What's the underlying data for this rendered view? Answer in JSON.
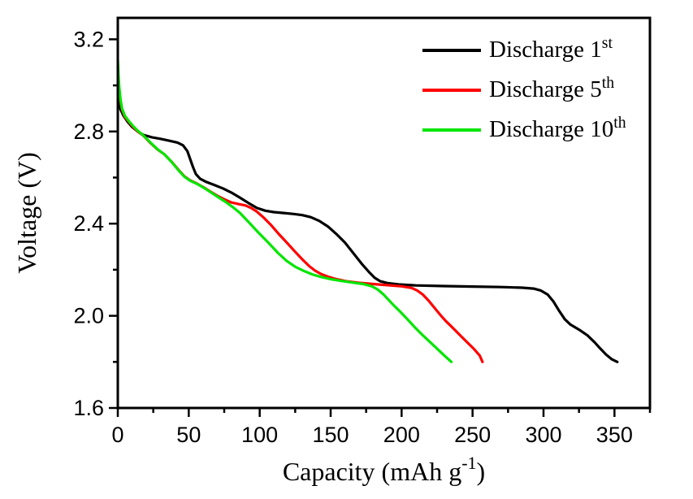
{
  "figure": {
    "background": "#ffffff",
    "frame_color": "#000000"
  },
  "chart_data": {
    "type": "line",
    "title": "",
    "xlabel_parts": {
      "base": "Capacity (mAh g",
      "sup": "-1",
      "end": ")"
    },
    "ylabel": "Voltage (V)",
    "grid": false,
    "legend_position": "top-right",
    "x_axis": {
      "min": 0,
      "max": 375,
      "major_ticks": [
        0,
        50,
        100,
        150,
        200,
        250,
        300,
        350
      ],
      "minor_ticks": [
        25,
        75,
        125,
        175,
        225,
        275,
        325,
        375
      ]
    },
    "y_axis": {
      "min": 1.6,
      "max": 3.293,
      "major_ticks": [
        1.6,
        2.0,
        2.4,
        2.8,
        3.2
      ],
      "minor_ticks": [
        1.8,
        2.2,
        2.6,
        3.0
      ]
    },
    "series": [
      {
        "name": "Discharge 1st",
        "legend_base": "Discharge 1",
        "legend_sup": "st",
        "color": "#000000",
        "points": [
          [
            0,
            2.96
          ],
          [
            1,
            2.92
          ],
          [
            2,
            2.895
          ],
          [
            4,
            2.868
          ],
          [
            7,
            2.842
          ],
          [
            10,
            2.82
          ],
          [
            14,
            2.8
          ],
          [
            18,
            2.785
          ],
          [
            24,
            2.775
          ],
          [
            30,
            2.768
          ],
          [
            36,
            2.76
          ],
          [
            42,
            2.752
          ],
          [
            46,
            2.74
          ],
          [
            49,
            2.715
          ],
          [
            51,
            2.68
          ],
          [
            53,
            2.645
          ],
          [
            55,
            2.615
          ],
          [
            58,
            2.595
          ],
          [
            62,
            2.582
          ],
          [
            68,
            2.568
          ],
          [
            74,
            2.553
          ],
          [
            80,
            2.535
          ],
          [
            86,
            2.513
          ],
          [
            92,
            2.49
          ],
          [
            98,
            2.468
          ],
          [
            104,
            2.456
          ],
          [
            110,
            2.45
          ],
          [
            117,
            2.446
          ],
          [
            124,
            2.442
          ],
          [
            130,
            2.437
          ],
          [
            136,
            2.428
          ],
          [
            142,
            2.412
          ],
          [
            148,
            2.388
          ],
          [
            154,
            2.355
          ],
          [
            160,
            2.318
          ],
          [
            166,
            2.272
          ],
          [
            172,
            2.225
          ],
          [
            177,
            2.19
          ],
          [
            181,
            2.165
          ],
          [
            185,
            2.15
          ],
          [
            190,
            2.142
          ],
          [
            198,
            2.136
          ],
          [
            210,
            2.132
          ],
          [
            230,
            2.129
          ],
          [
            250,
            2.127
          ],
          [
            270,
            2.125
          ],
          [
            285,
            2.122
          ],
          [
            293,
            2.118
          ],
          [
            298,
            2.11
          ],
          [
            303,
            2.092
          ],
          [
            307,
            2.062
          ],
          [
            311,
            2.022
          ],
          [
            315,
            1.985
          ],
          [
            319,
            1.962
          ],
          [
            325,
            1.94
          ],
          [
            331,
            1.915
          ],
          [
            336,
            1.885
          ],
          [
            340,
            1.858
          ],
          [
            344,
            1.832
          ],
          [
            348,
            1.812
          ],
          [
            352,
            1.8
          ]
        ]
      },
      {
        "name": "Discharge 5th",
        "legend_base": "Discharge 5",
        "legend_sup": "th",
        "color": "#ff0000",
        "points": [
          [
            0,
            3.08
          ],
          [
            0.5,
            3.01
          ],
          [
            1,
            2.975
          ],
          [
            2,
            2.925
          ],
          [
            3,
            2.895
          ],
          [
            5,
            2.863
          ],
          [
            8,
            2.84
          ],
          [
            11,
            2.818
          ],
          [
            14,
            2.8
          ],
          [
            18,
            2.782
          ],
          [
            23,
            2.75
          ],
          [
            28,
            2.722
          ],
          [
            33,
            2.7
          ],
          [
            38,
            2.668
          ],
          [
            43,
            2.632
          ],
          [
            47,
            2.605
          ],
          [
            51,
            2.588
          ],
          [
            56,
            2.573
          ],
          [
            61,
            2.556
          ],
          [
            66,
            2.536
          ],
          [
            71,
            2.518
          ],
          [
            76,
            2.503
          ],
          [
            80,
            2.492
          ],
          [
            85,
            2.485
          ],
          [
            90,
            2.479
          ],
          [
            94,
            2.468
          ],
          [
            98,
            2.452
          ],
          [
            103,
            2.425
          ],
          [
            108,
            2.394
          ],
          [
            113,
            2.358
          ],
          [
            119,
            2.318
          ],
          [
            125,
            2.278
          ],
          [
            130,
            2.245
          ],
          [
            135,
            2.215
          ],
          [
            139,
            2.196
          ],
          [
            143,
            2.182
          ],
          [
            148,
            2.17
          ],
          [
            154,
            2.159
          ],
          [
            161,
            2.15
          ],
          [
            170,
            2.143
          ],
          [
            180,
            2.138
          ],
          [
            190,
            2.133
          ],
          [
            200,
            2.128
          ],
          [
            207,
            2.121
          ],
          [
            211,
            2.11
          ],
          [
            215,
            2.092
          ],
          [
            219,
            2.066
          ],
          [
            223,
            2.036
          ],
          [
            227,
            2.006
          ],
          [
            231,
            1.978
          ],
          [
            236,
            1.948
          ],
          [
            241,
            1.917
          ],
          [
            246,
            1.886
          ],
          [
            251,
            1.856
          ],
          [
            255,
            1.828
          ],
          [
            257,
            1.8
          ]
        ]
      },
      {
        "name": "Discharge 10th",
        "legend_base": "Discharge 10",
        "legend_sup": "th",
        "color": "#00e600",
        "points": [
          [
            0,
            3.11
          ],
          [
            0.5,
            3.04
          ],
          [
            1,
            2.995
          ],
          [
            2,
            2.935
          ],
          [
            3,
            2.9
          ],
          [
            5,
            2.868
          ],
          [
            8,
            2.843
          ],
          [
            11,
            2.822
          ],
          [
            14,
            2.803
          ],
          [
            18,
            2.783
          ],
          [
            23,
            2.752
          ],
          [
            28,
            2.723
          ],
          [
            33,
            2.7
          ],
          [
            38,
            2.667
          ],
          [
            43,
            2.63
          ],
          [
            47,
            2.603
          ],
          [
            51,
            2.586
          ],
          [
            56,
            2.572
          ],
          [
            61,
            2.554
          ],
          [
            66,
            2.534
          ],
          [
            71,
            2.514
          ],
          [
            76,
            2.494
          ],
          [
            81,
            2.472
          ],
          [
            86,
            2.447
          ],
          [
            92,
            2.408
          ],
          [
            99,
            2.362
          ],
          [
            106,
            2.318
          ],
          [
            113,
            2.272
          ],
          [
            119,
            2.238
          ],
          [
            125,
            2.213
          ],
          [
            131,
            2.195
          ],
          [
            137,
            2.18
          ],
          [
            143,
            2.169
          ],
          [
            150,
            2.159
          ],
          [
            158,
            2.151
          ],
          [
            166,
            2.144
          ],
          [
            173,
            2.138
          ],
          [
            179,
            2.128
          ],
          [
            183,
            2.115
          ],
          [
            187,
            2.094
          ],
          [
            191,
            2.068
          ],
          [
            195,
            2.042
          ],
          [
            199,
            2.018
          ],
          [
            204,
            1.986
          ],
          [
            209,
            1.952
          ],
          [
            214,
            1.921
          ],
          [
            219,
            1.892
          ],
          [
            224,
            1.863
          ],
          [
            229,
            1.834
          ],
          [
            235,
            1.8
          ]
        ]
      }
    ]
  }
}
